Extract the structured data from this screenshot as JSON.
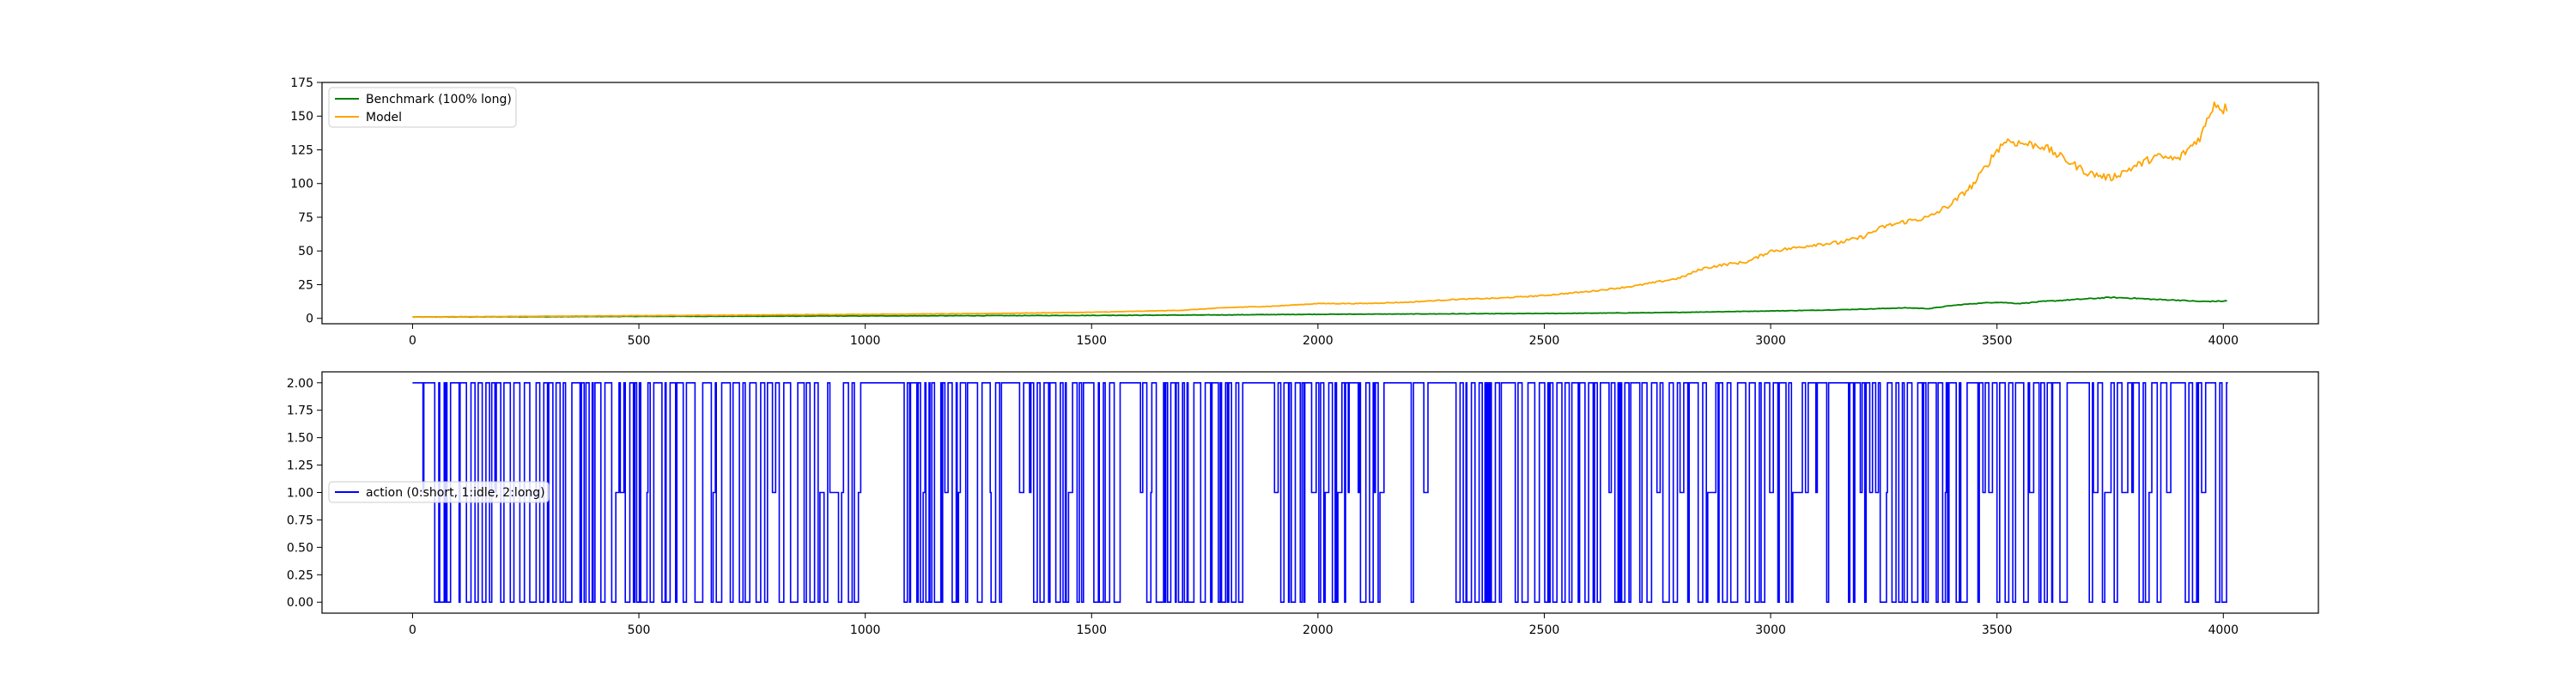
{
  "colors": {
    "benchmark": "#008000",
    "model": "#ffa500",
    "action": "#0000ff",
    "axes": "#000000",
    "legend_border": "#cccccc"
  },
  "chart_data": [
    {
      "type": "line",
      "title": "",
      "xlabel": "",
      "ylabel": "",
      "xlim": [
        -200,
        4210
      ],
      "ylim": [
        -4,
        175
      ],
      "xticks": [
        0,
        500,
        1000,
        1500,
        2000,
        2500,
        3000,
        3500,
        4000
      ],
      "yticks": [
        0,
        25,
        50,
        75,
        100,
        125,
        150,
        175
      ],
      "grid": false,
      "legend_position": "upper left",
      "series": [
        {
          "name": "Benchmark (100% long)",
          "color": "#008000",
          "x": [
            0,
            250,
            500,
            750,
            1000,
            1250,
            1500,
            1750,
            2000,
            2250,
            2500,
            2750,
            3000,
            3100,
            3200,
            3300,
            3350,
            3400,
            3450,
            3500,
            3550,
            3600,
            3650,
            3700,
            3750,
            3800,
            3850,
            3900,
            3950,
            4000,
            4010
          ],
          "y": [
            1,
            1.2,
            1.5,
            1.6,
            1.8,
            2.0,
            2.2,
            2.5,
            3.0,
            3.3,
            3.6,
            4.2,
            5.5,
            6.0,
            6.8,
            7.8,
            7.2,
            9.5,
            11.0,
            12.0,
            11.0,
            12.5,
            13.5,
            14.5,
            15.5,
            15.0,
            14.0,
            13.5,
            12.5,
            12.8,
            13.0
          ]
        },
        {
          "name": "Model",
          "color": "#ffa500",
          "x": [
            0,
            250,
            500,
            750,
            1000,
            1250,
            1500,
            1700,
            1800,
            1900,
            2000,
            2100,
            2200,
            2300,
            2400,
            2500,
            2600,
            2700,
            2800,
            2850,
            2900,
            2950,
            3000,
            3050,
            3100,
            3150,
            3200,
            3250,
            3300,
            3350,
            3400,
            3450,
            3500,
            3520,
            3550,
            3600,
            3650,
            3700,
            3750,
            3800,
            3850,
            3900,
            3950,
            3980,
            4000,
            4010
          ],
          "y": [
            1,
            1.5,
            2,
            2.5,
            3,
            3.5,
            4.5,
            6,
            8,
            9,
            11,
            11,
            12,
            14,
            15,
            17,
            20,
            24,
            30,
            37,
            40,
            42,
            50,
            52,
            55,
            56,
            60,
            68,
            72,
            75,
            85,
            100,
            125,
            132,
            130,
            128,
            118,
            108,
            104,
            112,
            120,
            118,
            135,
            160,
            155,
            157
          ]
        }
      ]
    },
    {
      "type": "line",
      "title": "",
      "xlabel": "",
      "ylabel": "",
      "xlim": [
        -200,
        4210
      ],
      "ylim": [
        -0.1,
        2.1
      ],
      "xticks": [
        0,
        500,
        1000,
        1500,
        2000,
        2500,
        3000,
        3500,
        4000
      ],
      "yticks": [
        0.0,
        0.25,
        0.5,
        0.75,
        1.0,
        1.25,
        1.5,
        1.75,
        2.0
      ],
      "grid": false,
      "legend_position": "center left",
      "series": [
        {
          "name": "action (0:short, 1:idle, 2:long)",
          "color": "#0000ff",
          "step": true,
          "x_start": 0,
          "x_end": 4010,
          "values_domain": [
            0,
            1,
            2
          ]
        }
      ]
    }
  ],
  "tick_text": {
    "top_x": [
      "0",
      "500",
      "1000",
      "1500",
      "2000",
      "2500",
      "3000",
      "3500",
      "4000"
    ],
    "top_y": [
      "0",
      "25",
      "50",
      "75",
      "100",
      "125",
      "150",
      "175"
    ],
    "bottom_x": [
      "0",
      "500",
      "1000",
      "1500",
      "2000",
      "2500",
      "3000",
      "3500",
      "4000"
    ],
    "bottom_y": [
      "0.00",
      "0.25",
      "0.50",
      "0.75",
      "1.00",
      "1.25",
      "1.50",
      "1.75",
      "2.00"
    ]
  },
  "legend": {
    "top": [
      "Benchmark (100% long)",
      "Model"
    ],
    "bottom": [
      "action (0:short, 1:idle, 2:long)"
    ]
  }
}
